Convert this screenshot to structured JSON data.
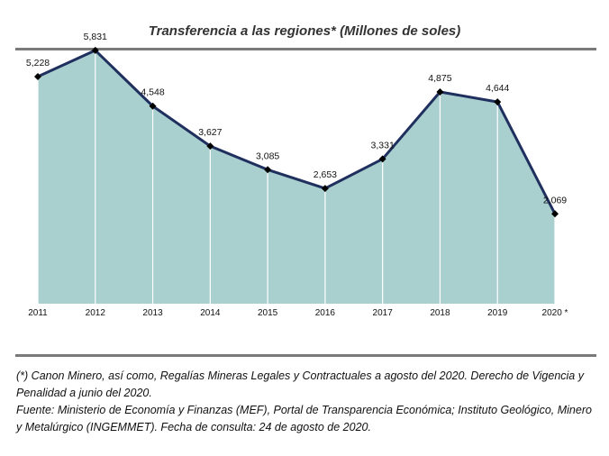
{
  "title": "Transferencia a las regiones* (Millones de soles)",
  "chart_data": {
    "type": "area",
    "categories": [
      "2011",
      "2012",
      "2013",
      "2014",
      "2015",
      "2016",
      "2017",
      "2018",
      "2019",
      "2020 *"
    ],
    "values": [
      5228,
      5831,
      4548,
      3627,
      3085,
      2653,
      3331,
      4875,
      4644,
      2069
    ],
    "value_labels": [
      "5,228",
      "5,831",
      "4,548",
      "3,627",
      "3,085",
      "2,653",
      "3,331",
      "4,875",
      "4,644",
      "2,069"
    ],
    "ylim": [
      0,
      6700
    ],
    "grid": false,
    "legend": "none",
    "colors": {
      "area": "#aacfcf",
      "line": "#1f2f5e",
      "marker": "#000000",
      "dividers": "#ffffff"
    }
  },
  "footnotes": {
    "note": "(*) Canon Minero, así como, Regalías Mineras Legales y Contractuales a agosto del 2020. Derecho de Vigencia y Penalidad a junio del 2020.",
    "source": "Fuente: Ministerio de Economía y Finanzas (MEF), Portal de Transparencia Económica; Instituto Geológico, Minero y Metalúrgico (INGEMMET).  Fecha de consulta: 24 de agosto de 2020."
  }
}
